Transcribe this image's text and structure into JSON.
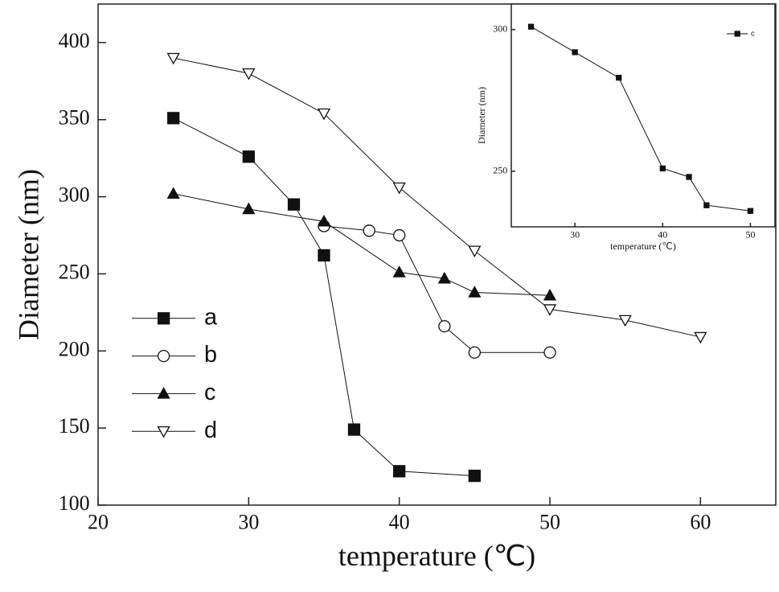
{
  "chart_data": [
    {
      "type": "line",
      "xlabel": "temperature (℃)",
      "ylabel": "Diameter (nm)",
      "xlim": [
        20,
        65
      ],
      "ylim": [
        100,
        425
      ],
      "xticks": [
        20,
        30,
        40,
        50,
        60
      ],
      "yticks": [
        100,
        150,
        200,
        250,
        300,
        350,
        400
      ],
      "legend": "lower left",
      "series": [
        {
          "name": "a",
          "color": "#111111",
          "marker": "square-filled",
          "x": [
            25,
            30,
            33,
            35,
            37,
            40,
            45
          ],
          "values": [
            351,
            326,
            295,
            262,
            149,
            122,
            119
          ]
        },
        {
          "name": "b",
          "color": "#111111",
          "marker": "circle-open",
          "x": [
            35,
            38,
            40,
            43,
            45,
            50
          ],
          "values": [
            281,
            278,
            275,
            216,
            199,
            199
          ]
        },
        {
          "name": "c",
          "color": "#111111",
          "marker": "triangle-up",
          "x": [
            25,
            30,
            35,
            40,
            43,
            45,
            50
          ],
          "values": [
            302,
            292,
            284,
            251,
            247,
            238,
            236
          ]
        },
        {
          "name": "d",
          "color": "#111111",
          "marker": "triangle-down",
          "x": [
            25,
            30,
            35,
            40,
            45,
            50,
            55,
            60
          ],
          "values": [
            390,
            380,
            354,
            306,
            265,
            227,
            220,
            209
          ]
        }
      ]
    },
    {
      "type": "line",
      "xlabel": "temperature (℃)",
      "ylabel": "Diameter (nm)",
      "xlim": [
        22.75,
        52.8
      ],
      "ylim": [
        230.4,
        309
      ],
      "xticks": [
        30,
        40,
        50
      ],
      "yticks": [
        250,
        300
      ],
      "legend": "upper right",
      "series": [
        {
          "name": "c",
          "color": "#111111",
          "marker": "square-filled",
          "x": [
            25,
            30,
            35,
            40,
            43,
            45,
            50
          ],
          "values": [
            301,
            292,
            283,
            251,
            248,
            238,
            236
          ]
        }
      ]
    }
  ]
}
